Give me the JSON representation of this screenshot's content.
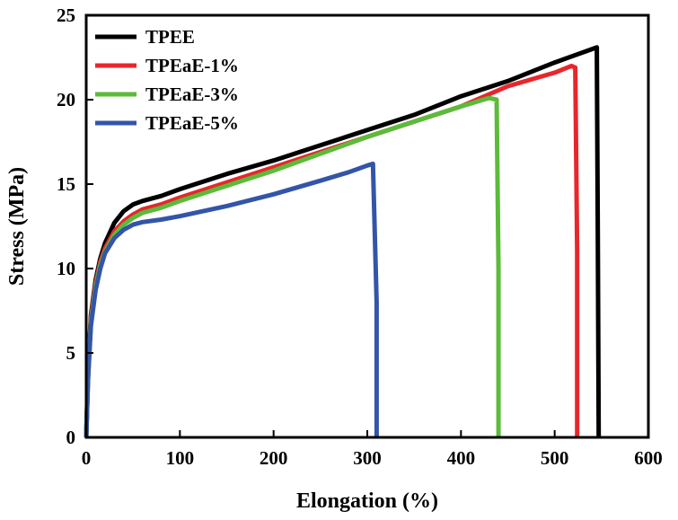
{
  "chart_data": {
    "type": "line",
    "title": "",
    "xlabel": "Elongation (%)",
    "ylabel": "Stress (MPa)",
    "xlim": [
      0,
      600
    ],
    "ylim": [
      0,
      25
    ],
    "xticks": [
      0,
      100,
      200,
      300,
      400,
      500,
      600
    ],
    "yticks": [
      0,
      5,
      10,
      15,
      20,
      25
    ],
    "grid": false,
    "legend_position": "top-left",
    "series": [
      {
        "name": "TPEE",
        "color": "#000000",
        "points": [
          [
            0,
            0
          ],
          [
            2,
            4
          ],
          [
            5,
            7.2
          ],
          [
            10,
            9.3
          ],
          [
            15,
            10.6
          ],
          [
            20,
            11.5
          ],
          [
            30,
            12.7
          ],
          [
            40,
            13.4
          ],
          [
            50,
            13.8
          ],
          [
            60,
            14.0
          ],
          [
            80,
            14.3
          ],
          [
            100,
            14.7
          ],
          [
            150,
            15.6
          ],
          [
            200,
            16.4
          ],
          [
            250,
            17.3
          ],
          [
            300,
            18.2
          ],
          [
            350,
            19.1
          ],
          [
            400,
            20.2
          ],
          [
            450,
            21.1
          ],
          [
            500,
            22.2
          ],
          [
            540,
            23.0
          ],
          [
            545,
            23.1
          ],
          [
            546,
            12
          ],
          [
            547,
            0
          ]
        ]
      },
      {
        "name": "TPEaE-1%",
        "color": "#e8262b",
        "points": [
          [
            0,
            0
          ],
          [
            2,
            3.8
          ],
          [
            5,
            7
          ],
          [
            10,
            9.1
          ],
          [
            15,
            10.4
          ],
          [
            20,
            11.2
          ],
          [
            30,
            12.2
          ],
          [
            40,
            12.8
          ],
          [
            50,
            13.2
          ],
          [
            60,
            13.5
          ],
          [
            80,
            13.8
          ],
          [
            100,
            14.2
          ],
          [
            150,
            15.1
          ],
          [
            200,
            16.0
          ],
          [
            250,
            16.9
          ],
          [
            300,
            17.8
          ],
          [
            350,
            18.7
          ],
          [
            400,
            19.6
          ],
          [
            450,
            20.8
          ],
          [
            500,
            21.6
          ],
          [
            518,
            22.0
          ],
          [
            522,
            21.9
          ],
          [
            524,
            11
          ],
          [
            524,
            0
          ]
        ]
      },
      {
        "name": "TPEaE-3%",
        "color": "#5bbb3a",
        "points": [
          [
            0,
            0
          ],
          [
            2,
            3.6
          ],
          [
            5,
            6.8
          ],
          [
            10,
            8.9
          ],
          [
            15,
            10.2
          ],
          [
            20,
            11.0
          ],
          [
            30,
            12.0
          ],
          [
            40,
            12.6
          ],
          [
            50,
            13.0
          ],
          [
            60,
            13.3
          ],
          [
            80,
            13.6
          ],
          [
            100,
            14.0
          ],
          [
            150,
            14.9
          ],
          [
            200,
            15.8
          ],
          [
            250,
            16.8
          ],
          [
            300,
            17.8
          ],
          [
            350,
            18.7
          ],
          [
            400,
            19.6
          ],
          [
            430,
            20.1
          ],
          [
            438,
            20.0
          ],
          [
            440,
            10
          ],
          [
            440,
            0
          ]
        ]
      },
      {
        "name": "TPEaE-5%",
        "color": "#3355a8",
        "points": [
          [
            0,
            0
          ],
          [
            2,
            3.5
          ],
          [
            5,
            6.6
          ],
          [
            10,
            8.7
          ],
          [
            15,
            10.0
          ],
          [
            20,
            10.9
          ],
          [
            30,
            11.8
          ],
          [
            40,
            12.3
          ],
          [
            50,
            12.6
          ],
          [
            60,
            12.75
          ],
          [
            80,
            12.9
          ],
          [
            100,
            13.1
          ],
          [
            150,
            13.7
          ],
          [
            200,
            14.4
          ],
          [
            250,
            15.2
          ],
          [
            280,
            15.7
          ],
          [
            300,
            16.1
          ],
          [
            306,
            16.2
          ],
          [
            310,
            8
          ],
          [
            310,
            0
          ]
        ]
      }
    ]
  }
}
